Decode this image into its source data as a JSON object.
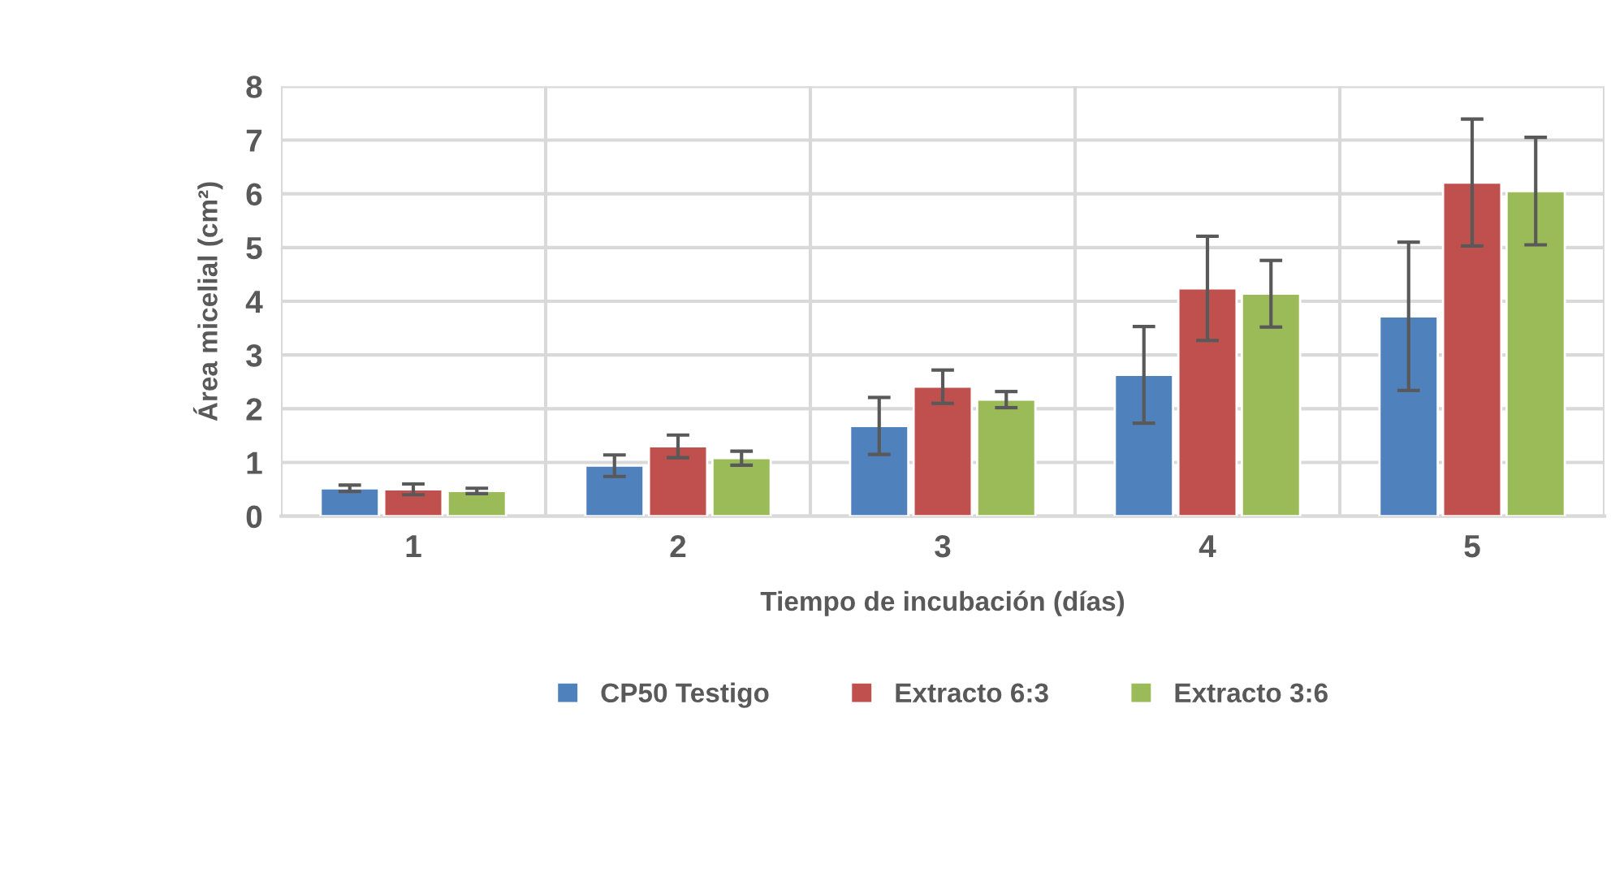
{
  "chart_data": {
    "type": "bar",
    "xlabel": "Tiempo de incubación (días)",
    "ylabel": "Área micelial (cm²)",
    "categories": [
      "1",
      "2",
      "3",
      "4",
      "5"
    ],
    "series": [
      {
        "name": "CP50 Testigo",
        "color": "#4f81bd",
        "values": [
          0.52,
          0.94,
          1.68,
          2.63,
          3.72
        ],
        "errors": [
          0.06,
          0.2,
          0.53,
          0.9,
          1.38
        ]
      },
      {
        "name": "Extracto 6:3",
        "color": "#c0504d",
        "values": [
          0.5,
          1.3,
          2.41,
          4.24,
          6.21
        ],
        "errors": [
          0.1,
          0.21,
          0.31,
          0.97,
          1.18
        ]
      },
      {
        "name": "Extracto 3:6",
        "color": "#9bbb59",
        "values": [
          0.47,
          1.08,
          2.17,
          4.14,
          6.05
        ],
        "errors": [
          0.05,
          0.13,
          0.15,
          0.62,
          1.0
        ]
      }
    ],
    "ylim": [
      0,
      8
    ],
    "yticks": [
      0,
      1,
      2,
      3,
      4,
      5,
      6,
      7,
      8
    ],
    "grid": true,
    "legend": "bottom"
  }
}
